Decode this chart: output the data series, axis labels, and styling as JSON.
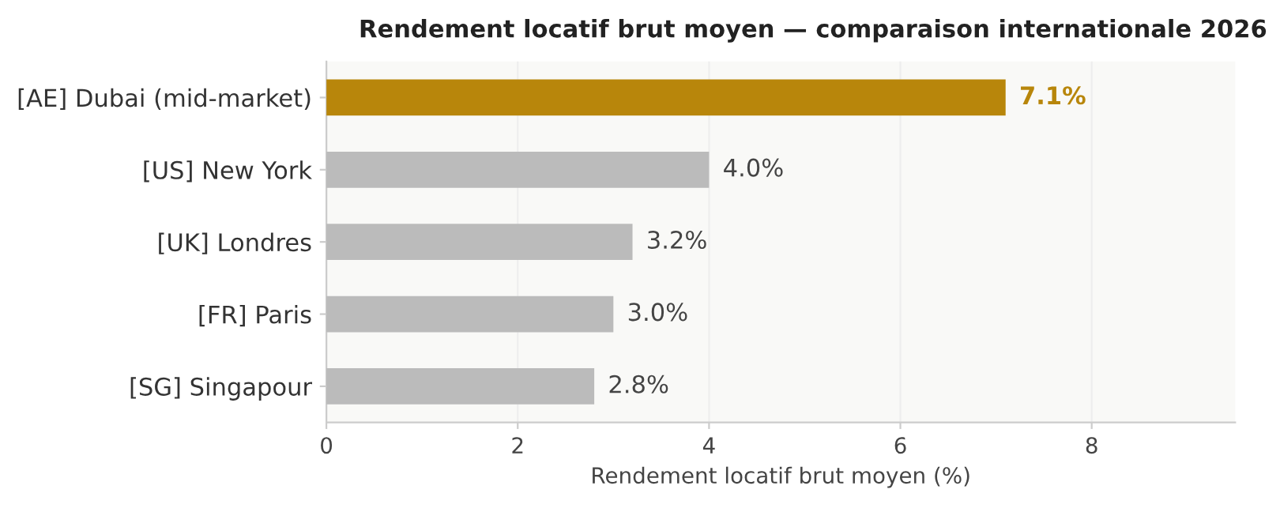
{
  "chart_data": {
    "type": "bar",
    "orientation": "horizontal",
    "title": "Rendement locatif brut moyen — comparaison internationale 2026",
    "xlabel": "Rendement locatif brut moyen (%)",
    "categories": [
      "[AE] Dubai (mid-market)",
      "[US] New York",
      "[UK] Londres",
      "[FR] Paris",
      "[SG] Singapour"
    ],
    "values": [
      7.1,
      4.0,
      3.2,
      3.0,
      2.8
    ],
    "colors": [
      "#b8860b",
      "#bbbbbb",
      "#bbbbbb",
      "#bbbbbb",
      "#bbbbbb"
    ],
    "value_labels": [
      "7.1%",
      "4.0%",
      "3.2%",
      "3.0%",
      "2.8%"
    ],
    "xlim": [
      0,
      9.5
    ],
    "xticks": [
      0,
      2,
      4,
      6,
      8
    ],
    "grid": "x"
  }
}
